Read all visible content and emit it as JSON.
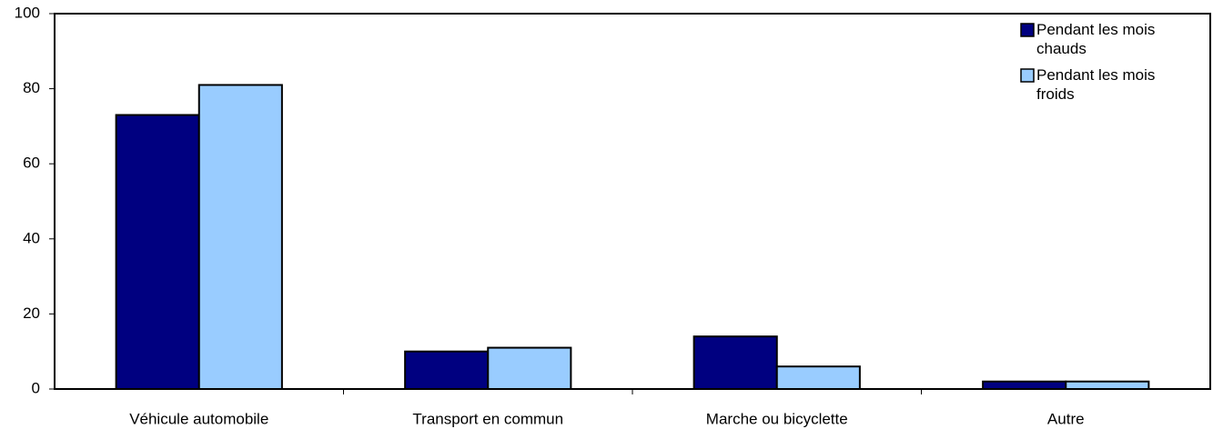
{
  "chart_data": {
    "type": "bar",
    "categories": [
      "Véhicule automobile",
      "Transport en commun",
      "Marche ou bicyclette",
      "Autre"
    ],
    "series": [
      {
        "name": "Pendant les mois chauds",
        "color": "#000080",
        "values": [
          73,
          10,
          14,
          2
        ]
      },
      {
        "name": "Pendant les mois froids",
        "color": "#99ccff",
        "values": [
          81,
          11,
          6,
          2
        ]
      }
    ],
    "ylim": [
      0,
      100
    ],
    "yticks": [
      0,
      20,
      40,
      60,
      80,
      100
    ],
    "grid": false,
    "legend": "upper right"
  }
}
